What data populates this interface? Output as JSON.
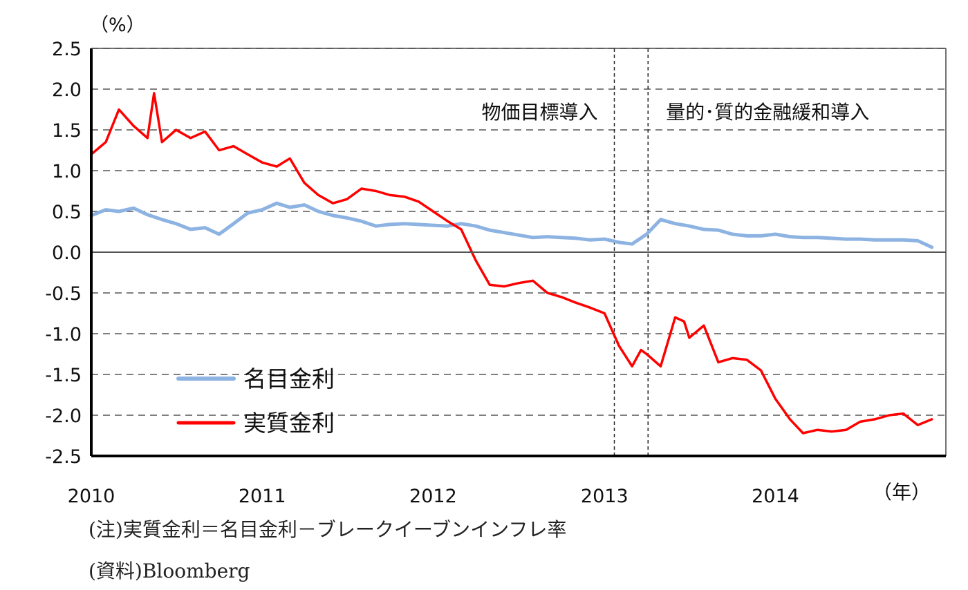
{
  "chart_data": {
    "type": "line",
    "unit_label": "（%）",
    "x_axis_unit": "（年）",
    "x_tick_labels": [
      "2010",
      "2011",
      "2012",
      "2013",
      "2014"
    ],
    "x_range": [
      "2010-01",
      "2014-12"
    ],
    "ylim": [
      -2.5,
      2.5
    ],
    "y_tick_labels": [
      "2.5",
      "2.0",
      "1.5",
      "1.0",
      "0.5",
      "0.0",
      "-0.5",
      "-1.0",
      "-1.5",
      "-2.0",
      "-2.5"
    ],
    "y_ticks": [
      2.5,
      2.0,
      1.5,
      1.0,
      0.5,
      0.0,
      -0.5,
      -1.0,
      -1.5,
      -2.0,
      -2.5
    ],
    "grid": "horizontal dashed",
    "legend_position": "lower-left",
    "events": [
      {
        "date": "2013-01-22",
        "label": "物価目標導入"
      },
      {
        "date": "2013-04-04",
        "label": "量的･質的金融緩和導入"
      }
    ],
    "series": [
      {
        "name": "名目金利",
        "color": "#8db3e2",
        "points": [
          [
            "2010-01-01",
            0.45
          ],
          [
            "2010-02-01",
            0.52
          ],
          [
            "2010-03-01",
            0.5
          ],
          [
            "2010-04-01",
            0.54
          ],
          [
            "2010-05-01",
            0.46
          ],
          [
            "2010-06-01",
            0.4
          ],
          [
            "2010-07-01",
            0.35
          ],
          [
            "2010-08-01",
            0.28
          ],
          [
            "2010-09-01",
            0.3
          ],
          [
            "2010-10-01",
            0.22
          ],
          [
            "2010-11-01",
            0.35
          ],
          [
            "2010-12-01",
            0.48
          ],
          [
            "2011-01-01",
            0.52
          ],
          [
            "2011-02-01",
            0.6
          ],
          [
            "2011-03-01",
            0.55
          ],
          [
            "2011-04-01",
            0.58
          ],
          [
            "2011-05-01",
            0.5
          ],
          [
            "2011-06-01",
            0.45
          ],
          [
            "2011-07-01",
            0.42
          ],
          [
            "2011-08-01",
            0.38
          ],
          [
            "2011-09-01",
            0.32
          ],
          [
            "2011-10-01",
            0.34
          ],
          [
            "2011-11-01",
            0.35
          ],
          [
            "2011-12-01",
            0.34
          ],
          [
            "2012-01-01",
            0.33
          ],
          [
            "2012-02-01",
            0.32
          ],
          [
            "2012-03-01",
            0.35
          ],
          [
            "2012-04-01",
            0.32
          ],
          [
            "2012-05-01",
            0.27
          ],
          [
            "2012-06-01",
            0.24
          ],
          [
            "2012-07-01",
            0.21
          ],
          [
            "2012-08-01",
            0.18
          ],
          [
            "2012-09-01",
            0.19
          ],
          [
            "2012-10-01",
            0.18
          ],
          [
            "2012-11-01",
            0.17
          ],
          [
            "2012-12-01",
            0.15
          ],
          [
            "2013-01-01",
            0.16
          ],
          [
            "2013-02-01",
            0.12
          ],
          [
            "2013-03-01",
            0.1
          ],
          [
            "2013-04-01",
            0.22
          ],
          [
            "2013-05-01",
            0.4
          ],
          [
            "2013-06-01",
            0.35
          ],
          [
            "2013-07-01",
            0.32
          ],
          [
            "2013-08-01",
            0.28
          ],
          [
            "2013-09-01",
            0.27
          ],
          [
            "2013-10-01",
            0.22
          ],
          [
            "2013-11-01",
            0.2
          ],
          [
            "2013-12-01",
            0.2
          ],
          [
            "2014-01-01",
            0.22
          ],
          [
            "2014-02-01",
            0.19
          ],
          [
            "2014-03-01",
            0.18
          ],
          [
            "2014-04-01",
            0.18
          ],
          [
            "2014-05-01",
            0.17
          ],
          [
            "2014-06-01",
            0.16
          ],
          [
            "2014-07-01",
            0.16
          ],
          [
            "2014-08-01",
            0.15
          ],
          [
            "2014-09-01",
            0.15
          ],
          [
            "2014-10-01",
            0.15
          ],
          [
            "2014-11-01",
            0.14
          ],
          [
            "2014-12-01",
            0.06
          ]
        ]
      },
      {
        "name": "実質金利",
        "color": "#ff0000",
        "points": [
          [
            "2010-01-01",
            1.2
          ],
          [
            "2010-02-01",
            1.35
          ],
          [
            "2010-03-01",
            1.75
          ],
          [
            "2010-04-01",
            1.55
          ],
          [
            "2010-05-01",
            1.4
          ],
          [
            "2010-05-15",
            1.95
          ],
          [
            "2010-06-01",
            1.35
          ],
          [
            "2010-07-01",
            1.5
          ],
          [
            "2010-08-01",
            1.4
          ],
          [
            "2010-09-01",
            1.48
          ],
          [
            "2010-10-01",
            1.25
          ],
          [
            "2010-11-01",
            1.3
          ],
          [
            "2010-12-01",
            1.2
          ],
          [
            "2011-01-01",
            1.1
          ],
          [
            "2011-02-01",
            1.05
          ],
          [
            "2011-03-01",
            1.15
          ],
          [
            "2011-04-01",
            0.85
          ],
          [
            "2011-05-01",
            0.7
          ],
          [
            "2011-06-01",
            0.6
          ],
          [
            "2011-07-01",
            0.65
          ],
          [
            "2011-08-01",
            0.78
          ],
          [
            "2011-09-01",
            0.75
          ],
          [
            "2011-10-01",
            0.7
          ],
          [
            "2011-11-01",
            0.68
          ],
          [
            "2011-12-01",
            0.62
          ],
          [
            "2012-01-01",
            0.5
          ],
          [
            "2012-02-01",
            0.38
          ],
          [
            "2012-03-01",
            0.28
          ],
          [
            "2012-04-01",
            -0.1
          ],
          [
            "2012-05-01",
            -0.4
          ],
          [
            "2012-06-01",
            -0.42
          ],
          [
            "2012-07-01",
            -0.38
          ],
          [
            "2012-08-01",
            -0.35
          ],
          [
            "2012-09-01",
            -0.5
          ],
          [
            "2012-10-01",
            -0.55
          ],
          [
            "2012-11-01",
            -0.62
          ],
          [
            "2012-12-01",
            -0.68
          ],
          [
            "2013-01-01",
            -0.75
          ],
          [
            "2013-02-01",
            -1.15
          ],
          [
            "2013-03-01",
            -1.4
          ],
          [
            "2013-03-20",
            -1.2
          ],
          [
            "2013-04-01",
            -1.25
          ],
          [
            "2013-05-01",
            -1.4
          ],
          [
            "2013-06-01",
            -0.8
          ],
          [
            "2013-06-20",
            -0.85
          ],
          [
            "2013-07-01",
            -1.05
          ],
          [
            "2013-08-01",
            -0.9
          ],
          [
            "2013-09-01",
            -1.35
          ],
          [
            "2013-10-01",
            -1.3
          ],
          [
            "2013-11-01",
            -1.32
          ],
          [
            "2013-12-01",
            -1.45
          ],
          [
            "2014-01-01",
            -1.8
          ],
          [
            "2014-02-01",
            -2.05
          ],
          [
            "2014-03-01",
            -2.22
          ],
          [
            "2014-04-01",
            -2.18
          ],
          [
            "2014-05-01",
            -2.2
          ],
          [
            "2014-06-01",
            -2.18
          ],
          [
            "2014-07-01",
            -2.08
          ],
          [
            "2014-08-01",
            -2.05
          ],
          [
            "2014-09-01",
            -2.0
          ],
          [
            "2014-10-01",
            -1.98
          ],
          [
            "2014-11-01",
            -2.12
          ],
          [
            "2014-12-01",
            -2.05
          ]
        ]
      }
    ]
  },
  "notes": {
    "note": "(注)実質金利＝名目金利－ブレークイーブンインフレ率",
    "source": "(資料)Bloomberg"
  }
}
